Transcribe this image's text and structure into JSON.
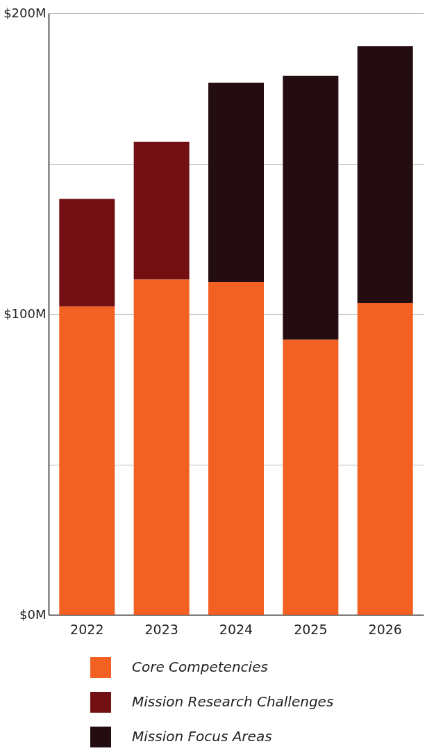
{
  "chart_data": {
    "type": "bar",
    "stacked": true,
    "categories": [
      "2022",
      "2023",
      "2024",
      "2025",
      "2026"
    ],
    "series": [
      {
        "name": "Core Competencies",
        "color": "#f26122",
        "values": [
          102.5,
          111.5,
          110.6,
          91.5,
          103.7
        ]
      },
      {
        "name": "Mission Research Challenges",
        "color": "#731014",
        "values": [
          35.8,
          45.8,
          null,
          null,
          null
        ]
      },
      {
        "name": "Mission Focus Areas",
        "color": "#230d10",
        "values": [
          null,
          null,
          66.3,
          87.7,
          85.4
        ]
      }
    ],
    "ylim": [
      0,
      200
    ],
    "yticks": [
      {
        "value": 0,
        "label": "$0M"
      },
      {
        "value": 50,
        "label": null
      },
      {
        "value": 100,
        "label": "$100M"
      },
      {
        "value": 150,
        "label": null
      },
      {
        "value": 200,
        "label": "$200M"
      }
    ],
    "grid": "y",
    "legend": "bottom"
  }
}
